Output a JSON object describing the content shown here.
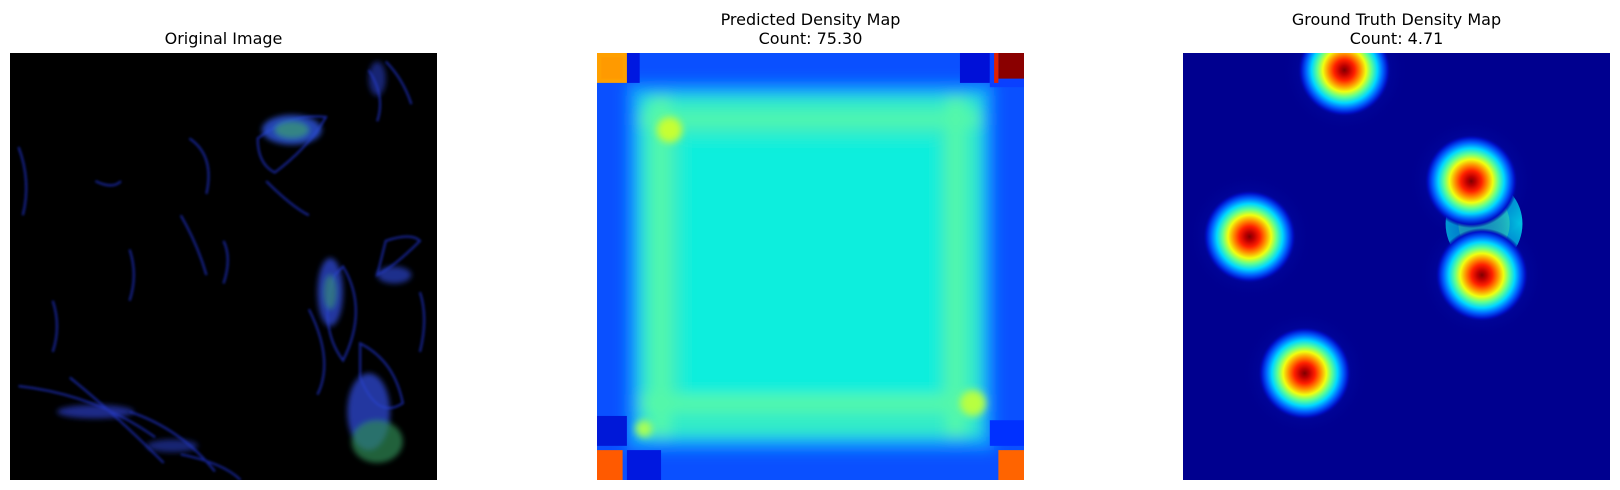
{
  "figure": {
    "panels": [
      {
        "title_lines": [
          "Original Image"
        ]
      },
      {
        "title_lines": [
          "Predicted Density Map",
          "Count: 75.30"
        ]
      },
      {
        "title_lines": [
          "Ground Truth Density Map",
          "Count: 4.71"
        ]
      }
    ],
    "colormap": "jet",
    "background_colors": {
      "original": "#000000",
      "ground_truth_min": "#00008f"
    }
  }
}
